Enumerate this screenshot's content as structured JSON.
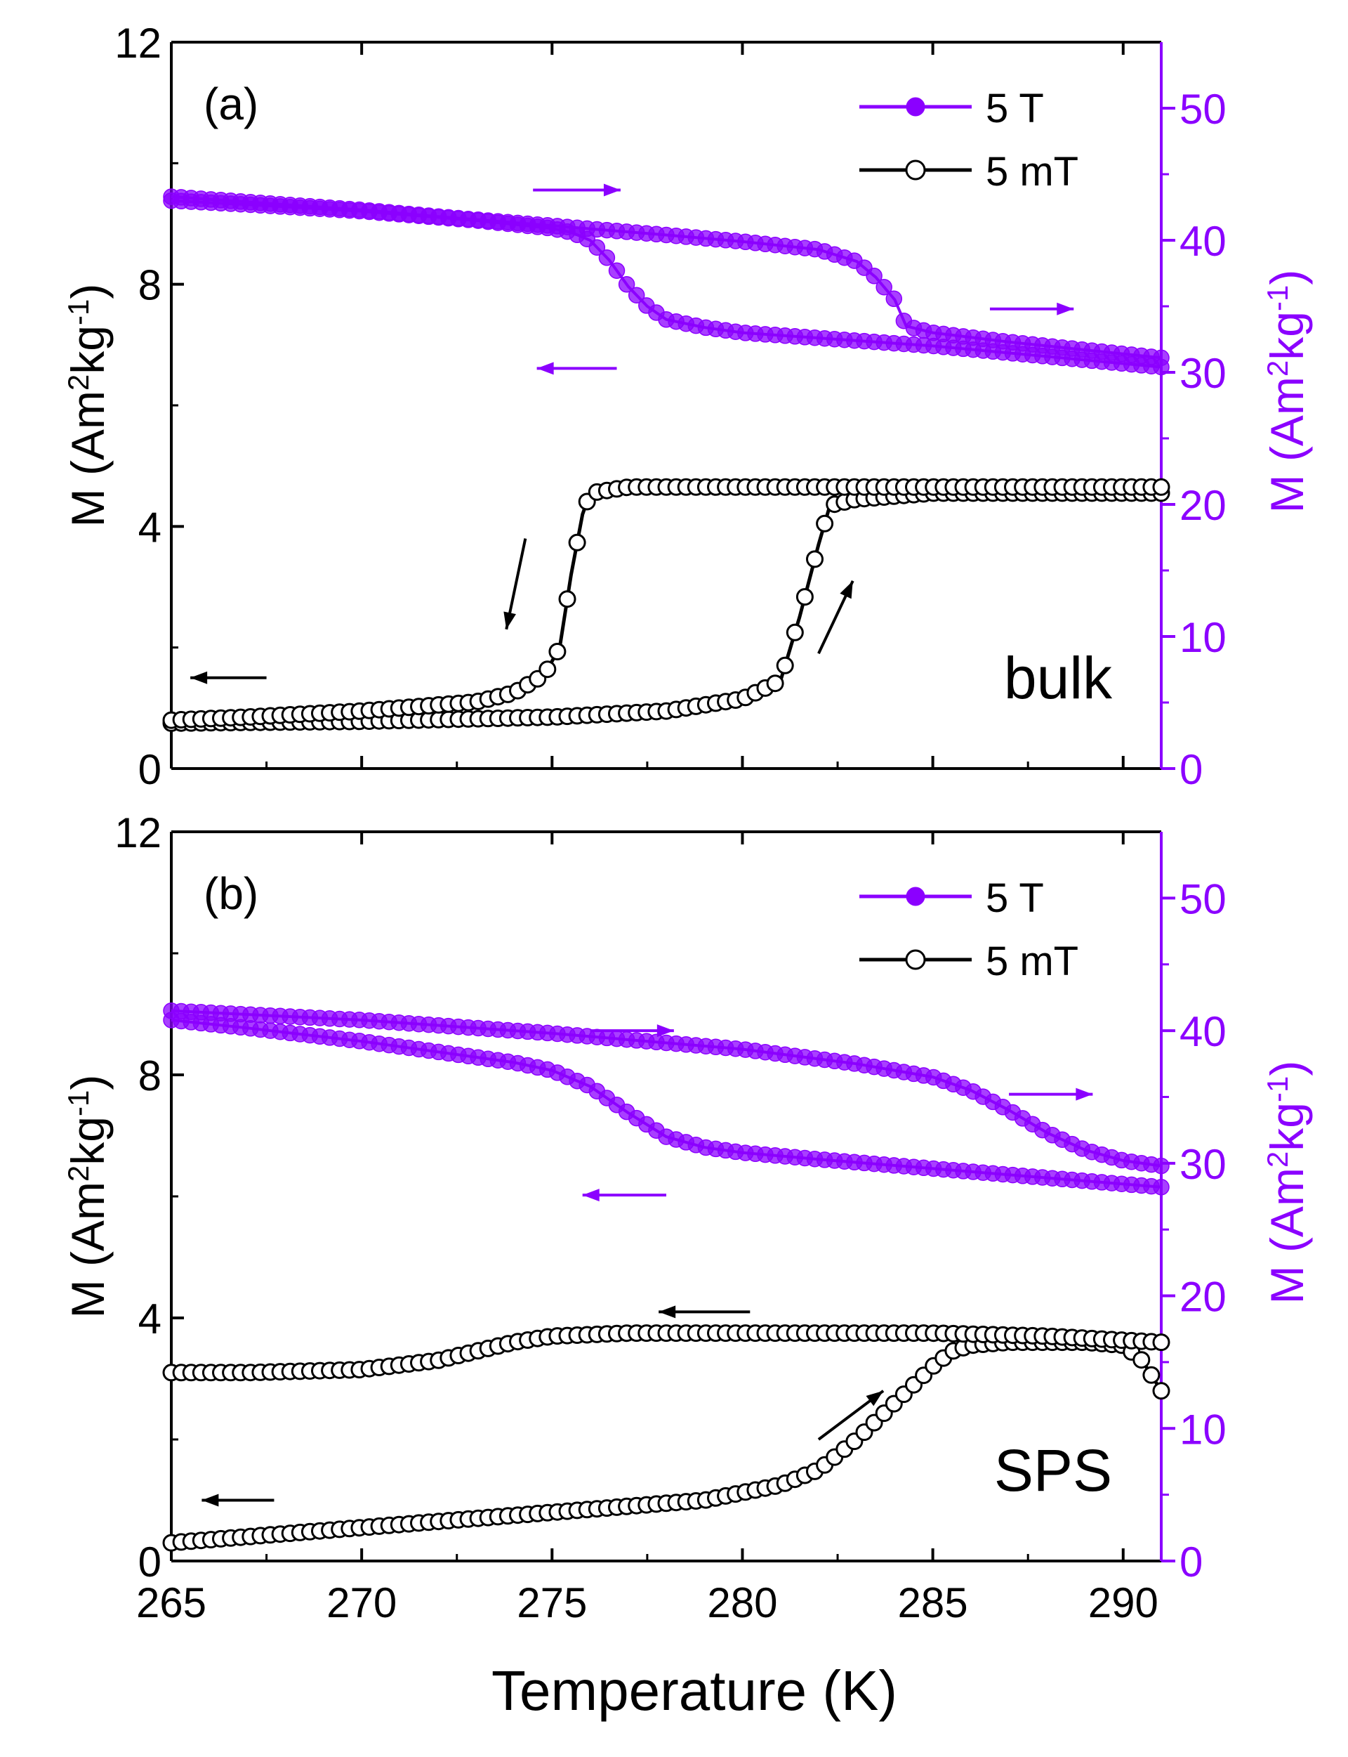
{
  "colors": {
    "primary": "#8B00FF",
    "black": "#000000",
    "marker_fill_5T": "#8B00FF",
    "marker_fill_5mT": "#ffffff"
  },
  "shared_x": {
    "label": "Temperature (K)",
    "range": [
      265,
      291
    ],
    "ticks": [
      "265",
      "270",
      "275",
      "280",
      "285",
      "290"
    ]
  },
  "chart_data": [
    {
      "type": "line",
      "panel_label": "(a)",
      "sample_label": "bulk",
      "xlabel": "Temperature (K)",
      "xlim": [
        265,
        291
      ],
      "left_axis": {
        "label_main": "M (Am",
        "sup2": "2",
        "label_kg": "kg",
        "supm1": "-1",
        "label_close": ")",
        "range": [
          0,
          12
        ],
        "ticks": [
          "0",
          "4",
          "8",
          "12"
        ]
      },
      "right_axis": {
        "label_main": "M (Am",
        "sup2": "2",
        "label_kg": "kg",
        "supm1": "-1",
        "label_close": ")",
        "range": [
          0,
          55
        ],
        "ticks": [
          "0",
          "10",
          "20",
          "30",
          "40",
          "50"
        ]
      },
      "legend": {
        "placement": "top-right",
        "entries": [
          "5 T",
          "5 mT"
        ]
      },
      "series": [
        {
          "name": "5 T",
          "axis": "right",
          "branch": "heating",
          "x": [
            265,
            267,
            270,
            272,
            275,
            278,
            280,
            282,
            283,
            283.5,
            284,
            284.3,
            285,
            287,
            290,
            291
          ],
          "y": [
            43.3,
            42.9,
            42.3,
            41.8,
            41.1,
            40.4,
            39.9,
            39.3,
            38.4,
            37.2,
            35.5,
            33.5,
            33.0,
            32.3,
            31.4,
            31.1
          ]
        },
        {
          "name": "5 T",
          "axis": "right",
          "branch": "cooling",
          "x": [
            291,
            288,
            285,
            282,
            280,
            279,
            278,
            277.5,
            277,
            276.5,
            276,
            275.5,
            275,
            273,
            270,
            267,
            265
          ],
          "y": [
            30.4,
            31.2,
            32.0,
            32.6,
            33.0,
            33.4,
            34.0,
            35.0,
            36.5,
            38.5,
            40.0,
            40.6,
            40.9,
            41.5,
            42.2,
            42.7,
            43.0
          ]
        },
        {
          "name": "5 mT",
          "axis": "left",
          "branch": "heating",
          "x": [
            265,
            270,
            275,
            278,
            280,
            281,
            281.5,
            282,
            282.3,
            283,
            285,
            291
          ],
          "y": [
            0.75,
            0.78,
            0.85,
            0.95,
            1.15,
            1.45,
            2.5,
            3.7,
            4.35,
            4.45,
            4.55,
            4.55
          ]
        },
        {
          "name": "5 mT",
          "axis": "left",
          "branch": "cooling",
          "x": [
            291,
            285,
            280,
            277,
            276,
            275.8,
            275.5,
            275.2,
            274.8,
            274,
            273,
            270,
            267,
            265
          ],
          "y": [
            4.65,
            4.65,
            4.65,
            4.65,
            4.55,
            4.2,
            3.2,
            2.0,
            1.55,
            1.25,
            1.1,
            0.95,
            0.85,
            0.8
          ]
        }
      ],
      "annotations": [
        "arrow right (heating 5 T)",
        "arrow left (cooling 5 T)",
        "arrow right (5 T axis)",
        "arrow left (5 mT axis)",
        "arrow down (5 mT cooling)",
        "arrow up (5 mT heating)"
      ]
    },
    {
      "type": "line",
      "panel_label": "(b)",
      "sample_label": "SPS",
      "xlabel": "Temperature (K)",
      "xlim": [
        265,
        291
      ],
      "left_axis": {
        "label_main": "M (Am",
        "sup2": "2",
        "label_kg": "kg",
        "supm1": "-1",
        "label_close": ")",
        "range": [
          0,
          12
        ],
        "ticks": [
          "0",
          "4",
          "8",
          "12"
        ]
      },
      "right_axis": {
        "label_main": "M (Am",
        "sup2": "2",
        "label_kg": "kg",
        "supm1": "-1",
        "label_close": ")",
        "range": [
          0,
          55
        ],
        "ticks": [
          "0",
          "10",
          "20",
          "30",
          "40",
          "50"
        ]
      },
      "legend": {
        "placement": "top-right",
        "entries": [
          "5 T",
          "5 mT"
        ]
      },
      "series": [
        {
          "name": "5 T",
          "axis": "right",
          "branch": "heating",
          "x": [
            265,
            270,
            275,
            280,
            283,
            285,
            286,
            287,
            288,
            289,
            290,
            291
          ],
          "y": [
            41.5,
            40.8,
            39.8,
            38.6,
            37.5,
            36.5,
            35.5,
            34.0,
            32.3,
            31.0,
            30.2,
            29.8
          ]
        },
        {
          "name": "5 T",
          "axis": "right",
          "branch": "cooling",
          "x": [
            291,
            288,
            285,
            282,
            280,
            279,
            278,
            277,
            276,
            275,
            274,
            272,
            270,
            267,
            265
          ],
          "y": [
            28.2,
            28.9,
            29.6,
            30.3,
            30.8,
            31.2,
            32.0,
            33.8,
            35.8,
            37.0,
            37.6,
            38.4,
            39.2,
            40.2,
            40.8
          ]
        },
        {
          "name": "5 mT",
          "axis": "left",
          "branch": "heating",
          "x": [
            265,
            270,
            275,
            279,
            281,
            282,
            283,
            284,
            285,
            285.5,
            286,
            287,
            289,
            290,
            290.5,
            291
          ],
          "y": [
            0.3,
            0.55,
            0.8,
            1.0,
            1.25,
            1.5,
            2.0,
            2.6,
            3.2,
            3.45,
            3.55,
            3.6,
            3.6,
            3.55,
            3.3,
            2.8
          ]
        },
        {
          "name": "5 mT",
          "axis": "left",
          "branch": "cooling",
          "x": [
            291,
            288,
            285,
            280,
            277,
            275,
            274,
            273,
            272,
            270,
            267,
            265
          ],
          "y": [
            3.6,
            3.7,
            3.75,
            3.75,
            3.75,
            3.7,
            3.6,
            3.45,
            3.3,
            3.15,
            3.1,
            3.1
          ]
        }
      ],
      "annotations": [
        "arrow right (heating 5 T)",
        "arrow left (cooling 5 T)",
        "arrow right (5 T axis)",
        "arrow left (5 mT cooling)",
        "arrow left (5 mT axis)",
        "arrow up-right (5 mT heating)"
      ]
    }
  ]
}
